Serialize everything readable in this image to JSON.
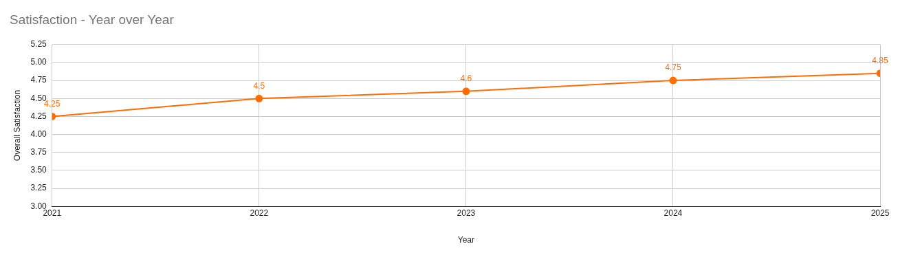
{
  "chart_data": {
    "type": "line",
    "title": "Satisfaction - Year over Year",
    "xlabel": "Year",
    "ylabel": "Overall Satisfaction",
    "x": [
      2021,
      2022,
      2023,
      2024,
      2025
    ],
    "series": [
      {
        "color": "#ff6d01",
        "values": [
          4.25,
          4.5,
          4.6,
          4.75,
          4.85
        ]
      }
    ],
    "xlim": [
      2021,
      2025
    ],
    "xticks": [
      2021,
      2022,
      2023,
      2024,
      2025
    ],
    "ylim": [
      3,
      5.25
    ],
    "yticks": [
      {
        "value": 3,
        "label": "3.00"
      },
      3.25,
      {
        "value": 3.5,
        "label": "3.50"
      },
      3.75,
      {
        "value": 4,
        "label": "4.00"
      },
      4.25,
      {
        "value": 4.5,
        "label": "4.50"
      },
      4.75,
      {
        "value": 5,
        "label": "5.00"
      },
      5.25
    ],
    "grid": true,
    "legend": false,
    "marker": "circle",
    "line_style": "solid",
    "data_labels": true
  }
}
